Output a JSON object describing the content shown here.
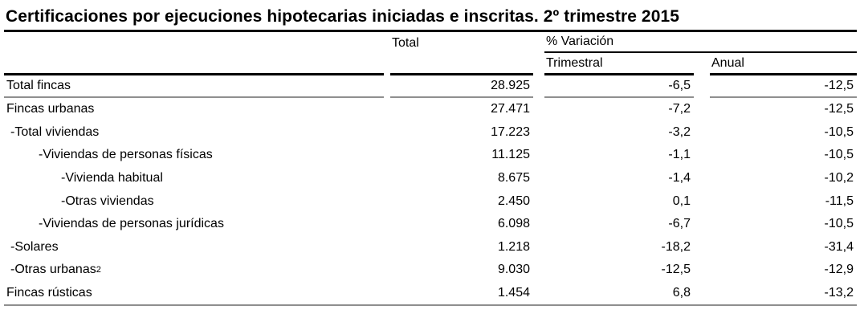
{
  "title": "Certificaciones por ejecuciones hipotecarias iniciadas e inscritas. 2º trimestre 2015",
  "header": {
    "total": "Total",
    "variacion_group": "% Variación",
    "trimestral": "Trimestral",
    "anual": "Anual"
  },
  "rows": [
    {
      "label": "Total fincas",
      "total": "28.925",
      "trimestral": "-6,5",
      "anual": "-12,5"
    },
    {
      "label": "Fincas urbanas",
      "total": "27.471",
      "trimestral": "-7,2",
      "anual": "-12,5"
    },
    {
      "label": "-Total viviendas",
      "total": "17.223",
      "trimestral": "-3,2",
      "anual": "-10,5"
    },
    {
      "label": "-Viviendas de personas físicas",
      "total": "11.125",
      "trimestral": "-1,1",
      "anual": "-10,5"
    },
    {
      "label": "-Vivienda habitual",
      "total": "8.675",
      "trimestral": "-1,4",
      "anual": "-10,2"
    },
    {
      "label": "-Otras viviendas",
      "total": "2.450",
      "trimestral": "0,1",
      "anual": "-11,5"
    },
    {
      "label": "-Viviendas de personas jurídicas",
      "total": "6.098",
      "trimestral": "-6,7",
      "anual": "-10,5"
    },
    {
      "label": "-Solares",
      "total": "1.218",
      "trimestral": "-18,2",
      "anual": "-31,4"
    },
    {
      "label": "-Otras urbanas",
      "label_sup": "2",
      "total": "9.030",
      "trimestral": "-12,5",
      "anual": "-12,9"
    },
    {
      "label": "Fincas rústicas",
      "total": "1.454",
      "trimestral": "6,8",
      "anual": "-13,2"
    }
  ],
  "colors": {
    "text": "#000000",
    "rule_dark": "#000000",
    "rule_gray": "#8f8f8f",
    "background": "#ffffff"
  }
}
